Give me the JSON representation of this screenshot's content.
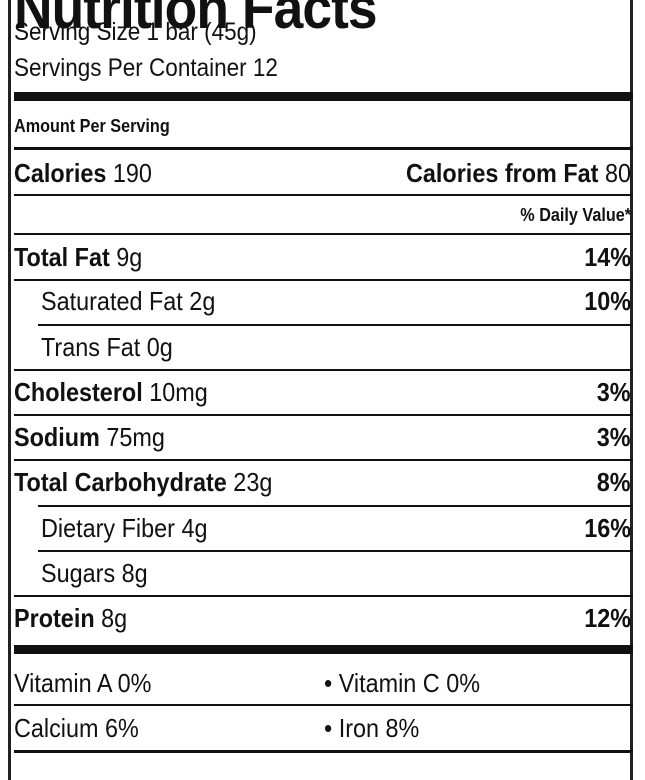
{
  "title": "Nutrition Facts",
  "serving_size": "Serving Size 1 bar (45g)",
  "servings_per_container": "Servings Per Container 12",
  "amount_per_serving": "Amount Per Serving",
  "calories": {
    "label": "Calories",
    "value": "190",
    "from_fat_label": "Calories from Fat",
    "from_fat_value": "80"
  },
  "daily_value_header": "% Daily Value*",
  "nutrients": [
    {
      "name": "Total Fat",
      "amount": "9g",
      "dv": "14%"
    },
    {
      "name": "Saturated Fat",
      "amount": "2g",
      "dv": "10%"
    },
    {
      "name": "Trans Fat",
      "amount": "0g",
      "dv": ""
    },
    {
      "name": "Cholesterol",
      "amount": "10mg",
      "dv": "3%"
    },
    {
      "name": "Sodium",
      "amount": "75mg",
      "dv": "3%"
    },
    {
      "name": "Total Carbohydrate",
      "amount": "23g",
      "dv": "8%"
    },
    {
      "name": "Dietary Fiber",
      "amount": "4g",
      "dv": "16%"
    },
    {
      "name": "Sugars",
      "amount": "8g",
      "dv": ""
    },
    {
      "name": "Protein",
      "amount": "8g",
      "dv": "12%"
    }
  ],
  "vitamins": [
    {
      "left": "Vitamin A 0%",
      "right": "• Vitamin C 0%"
    },
    {
      "left": "Calcium 6%",
      "right": "• Iron 8%"
    }
  ]
}
